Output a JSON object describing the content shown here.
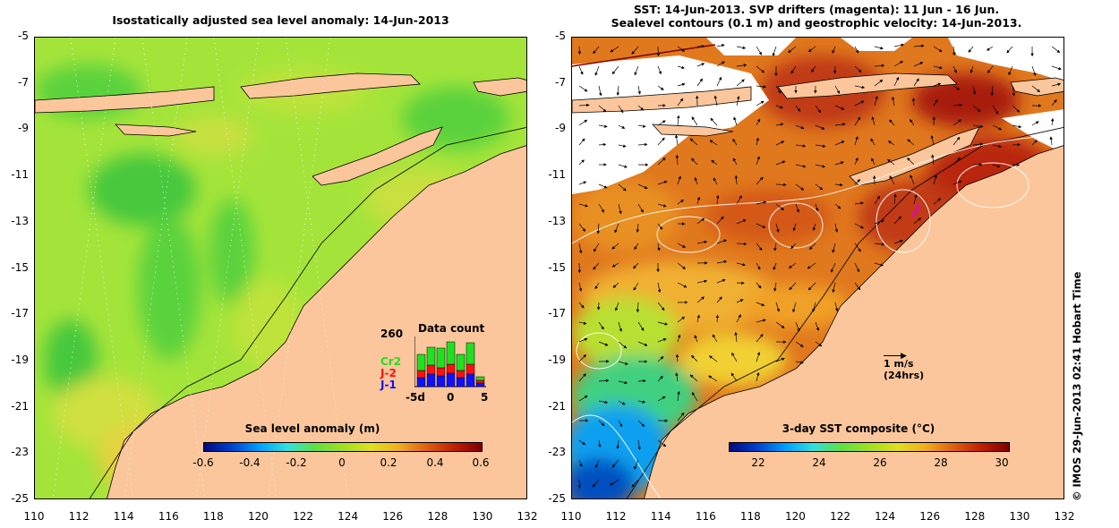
{
  "left_panel": {
    "title": "Isostatically adjusted sea level anomaly: 14-Jun-2013",
    "colorbar": {
      "label": "Sea level anomaly (m)",
      "ticks": [
        "-0.6",
        "-0.4",
        "-0.2",
        "0",
        "0.2",
        "0.4",
        "0.6"
      ],
      "colors": [
        "#000a80",
        "#0040d0",
        "#00a0ff",
        "#30e0e0",
        "#60e040",
        "#a0e020",
        "#e0e020",
        "#f0b020",
        "#e06010",
        "#c02000",
        "#800000"
      ]
    },
    "data_count": {
      "title": "Data count",
      "max_label": "260",
      "legend": [
        {
          "name": "Cr2",
          "color": "#20e020"
        },
        {
          "name": "J-2",
          "color": "#ff1010"
        },
        {
          "name": "J-1",
          "color": "#1010ff"
        }
      ],
      "x_ticks": [
        "-5d",
        "0",
        "5"
      ]
    }
  },
  "right_panel": {
    "title_line1": "SST: 14-Jun-2013. SVP drifters (magenta): 11 Jun - 16 Jun.",
    "title_line2": "Sealevel contours (0.1 m) and geostrophic velocity: 14-Jun-2013.",
    "colorbar": {
      "label": "3-day SST composite (°C)",
      "ticks": [
        "22",
        "24",
        "26",
        "28",
        "30"
      ],
      "colors": [
        "#000a80",
        "#0040d0",
        "#00a0ff",
        "#30e0e0",
        "#60e040",
        "#a0e020",
        "#e0e020",
        "#f0b020",
        "#e06010",
        "#c02000",
        "#800000"
      ]
    },
    "velocity_key": {
      "speed": "1 m/s",
      "duration": "(24hrs)"
    }
  },
  "axes": {
    "lat_ticks": [
      "-5",
      "-7",
      "-9",
      "-11",
      "-13",
      "-15",
      "-17",
      "-19",
      "-21",
      "-23",
      "-25"
    ],
    "lon_ticks": [
      "110",
      "112",
      "114",
      "116",
      "118",
      "120",
      "122",
      "124",
      "126",
      "128",
      "130",
      "132"
    ]
  },
  "credit": "© IMOS 29-Jun-2013 02:41 Hobart Time",
  "colors": {
    "land": "#fbc69b",
    "cloud": "#ffffff"
  }
}
